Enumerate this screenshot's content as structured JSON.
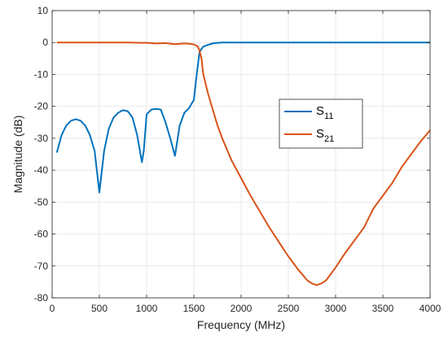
{
  "chart_data": {
    "type": "line",
    "title": "",
    "xlabel": "Frequency (MHz)",
    "ylabel": "Magnitude (dB)",
    "xlim": [
      0,
      4000
    ],
    "ylim": [
      -80,
      10
    ],
    "xticks": [
      0,
      500,
      1000,
      1500,
      2000,
      2500,
      3000,
      3500,
      4000
    ],
    "yticks": [
      -80,
      -70,
      -60,
      -50,
      -40,
      -30,
      -20,
      -10,
      0,
      10
    ],
    "grid": true,
    "legend_position": "center-right",
    "series": [
      {
        "name": "S11",
        "label_main": "S",
        "label_sub": "11",
        "color": "#0072BD",
        "x": [
          50,
          100,
          150,
          200,
          250,
          300,
          350,
          400,
          450,
          500,
          550,
          600,
          650,
          700,
          750,
          800,
          850,
          900,
          950,
          970,
          1000,
          1050,
          1100,
          1150,
          1200,
          1250,
          1300,
          1350,
          1400,
          1450,
          1500,
          1530,
          1560,
          1580,
          1600,
          1650,
          1700,
          1750,
          1800,
          2000,
          2500,
          3000,
          3500,
          4000
        ],
        "y": [
          -34.5,
          -29,
          -26,
          -24.5,
          -24,
          -24.5,
          -26,
          -29,
          -34,
          -47,
          -34,
          -27,
          -23.5,
          -22,
          -21.2,
          -21.5,
          -23.5,
          -29,
          -37.5,
          -34,
          -22.5,
          -21,
          -20.8,
          -21,
          -25,
          -30,
          -35.5,
          -26,
          -22,
          -20.5,
          -18,
          -10,
          -3,
          -2,
          -1.3,
          -0.7,
          -0.3,
          -0.1,
          0,
          0,
          0,
          0,
          0,
          0
        ]
      },
      {
        "name": "S21",
        "label_main": "S",
        "label_sub": "21",
        "color": "#D95319",
        "x": [
          50,
          200,
          400,
          600,
          800,
          950,
          1000,
          1100,
          1200,
          1300,
          1400,
          1450,
          1500,
          1540,
          1560,
          1580,
          1600,
          1650,
          1700,
          1750,
          1800,
          1900,
          2000,
          2100,
          2200,
          2300,
          2400,
          2500,
          2600,
          2700,
          2750,
          2800,
          2850,
          2900,
          2950,
          3000,
          3100,
          3200,
          3300,
          3400,
          3500,
          3600,
          3700,
          3800,
          3900,
          4000
        ],
        "y": [
          0,
          0,
          0,
          0,
          0,
          -0.1,
          -0.1,
          -0.3,
          -0.2,
          -0.5,
          -0.3,
          -0.4,
          -0.6,
          -1.2,
          -2.5,
          -5,
          -10,
          -16,
          -21,
          -26,
          -30,
          -37,
          -42.5,
          -48,
          -53,
          -58,
          -62.5,
          -67,
          -71,
          -74.5,
          -75.5,
          -76,
          -75.5,
          -74.5,
          -72.5,
          -70.5,
          -66,
          -62,
          -58,
          -52,
          -48,
          -44,
          -39,
          -35,
          -31,
          -27.5
        ]
      }
    ]
  }
}
